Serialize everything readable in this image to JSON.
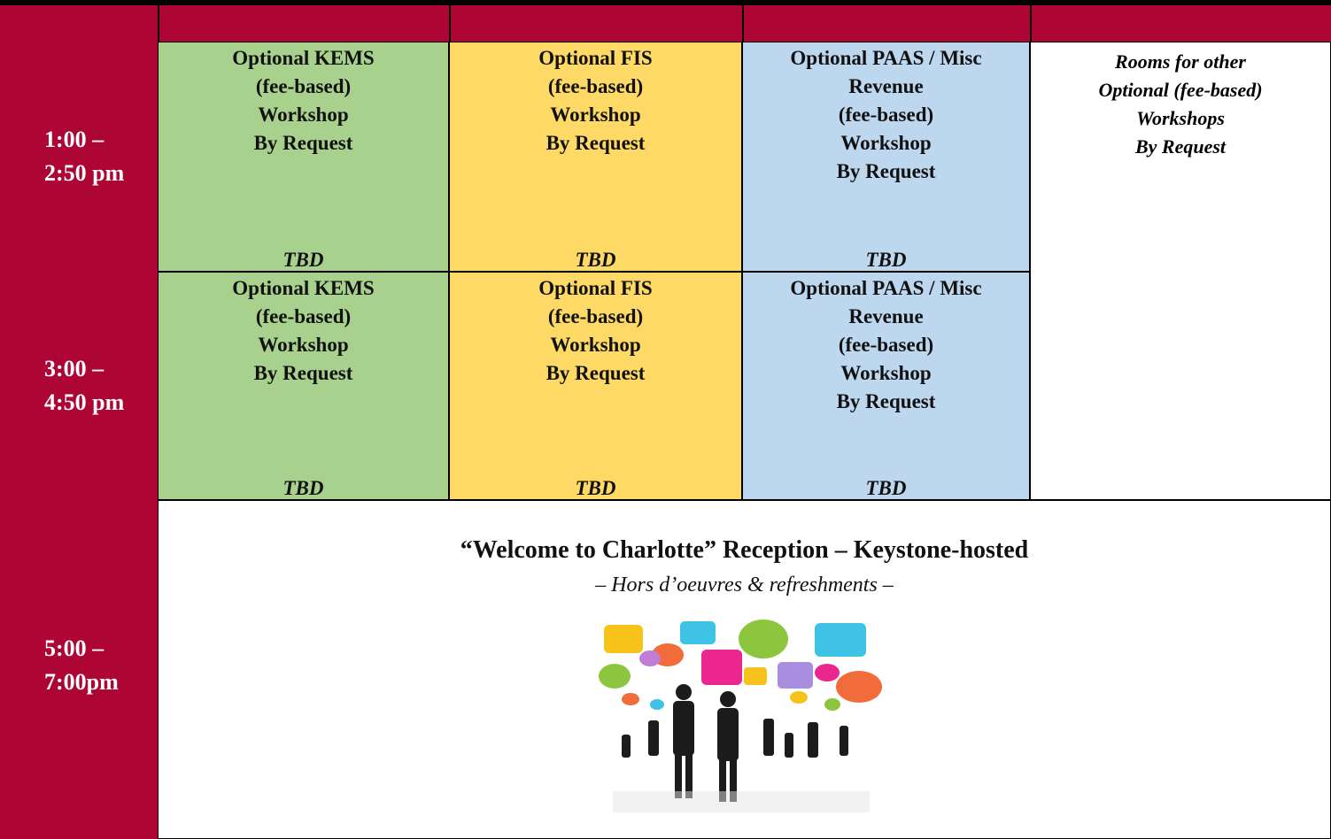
{
  "table": {
    "rows": [
      {
        "time": [
          "1:00 –",
          "2:50 pm"
        ],
        "cells": [
          {
            "lines": [
              "Optional KEMS",
              "(fee-based)",
              "Workshop",
              "By Request"
            ],
            "note": "TBD"
          },
          {
            "lines": [
              "Optional FIS",
              "(fee-based)",
              "Workshop",
              "By Request"
            ],
            "note": "TBD"
          },
          {
            "lines": [
              "Optional PAAS / Misc",
              "Revenue",
              "(fee-based)",
              "Workshop",
              "By Request"
            ],
            "note": "TBD"
          }
        ]
      },
      {
        "time": [
          "3:00 –",
          "4:50 pm"
        ],
        "cells": [
          {
            "lines": [
              "Optional KEMS",
              "(fee-based)",
              "Workshop",
              "By Request"
            ],
            "note": "TBD"
          },
          {
            "lines": [
              "Optional FIS",
              "(fee-based)",
              "Workshop",
              "By Request"
            ],
            "note": "TBD"
          },
          {
            "lines": [
              "Optional PAAS / Misc",
              "Revenue",
              "(fee-based)",
              "Workshop",
              "By Request"
            ],
            "note": "TBD"
          }
        ]
      }
    ],
    "side_note": [
      "Rooms for other",
      "Optional (fee-based)",
      "Workshops",
      "By Request"
    ],
    "reception": {
      "time": [
        "5:00 –",
        "7:00pm"
      ],
      "title": "“Welcome to Charlotte” Reception – Keystone-hosted",
      "subtitle": "– Hors d’oeuvres & refreshments –"
    }
  }
}
